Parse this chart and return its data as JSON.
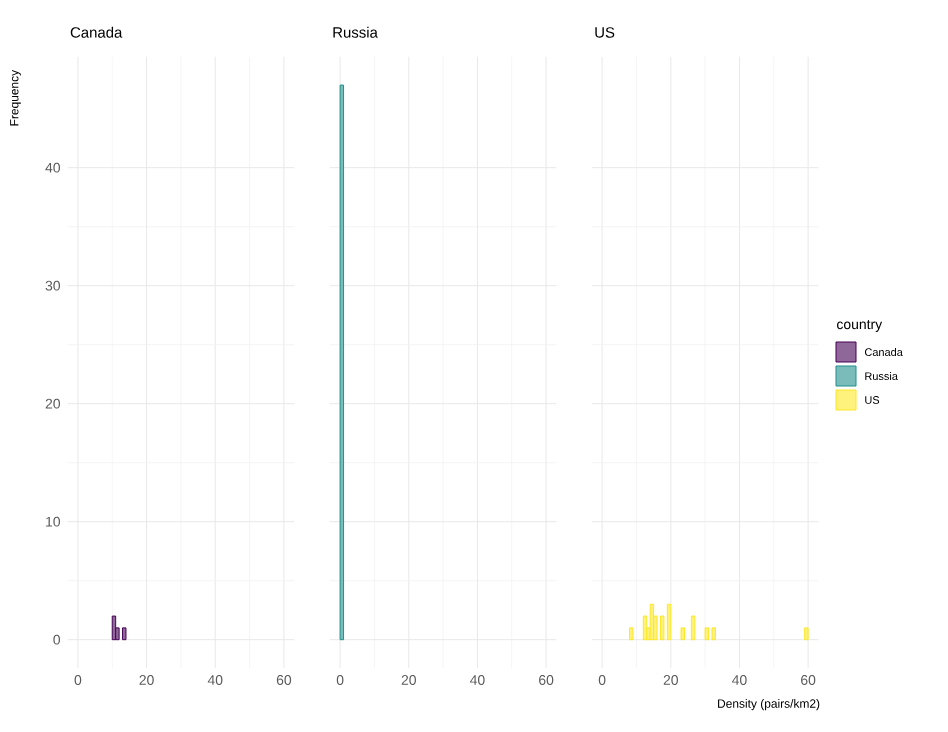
{
  "chart_data": [
    {
      "type": "histogram",
      "title": "Canada",
      "ylabel": "Frequency",
      "bins": [
        0,
        1,
        2,
        3,
        4,
        5,
        6,
        7,
        8,
        9,
        10,
        11,
        12,
        13,
        14,
        15,
        16,
        17,
        18,
        19,
        20,
        21,
        22,
        23,
        24,
        25,
        26,
        27,
        28,
        29,
        30,
        31,
        32,
        33,
        34,
        35,
        36,
        37,
        38,
        39,
        40,
        41,
        42,
        43,
        44,
        45,
        46,
        47,
        48,
        49,
        50,
        51,
        52,
        53,
        54,
        55,
        56,
        57,
        58,
        59,
        60
      ],
      "series": [
        {
          "name": "Canada",
          "color": "#440154",
          "values": [
            0,
            0,
            0,
            0,
            0,
            0,
            0,
            0,
            0,
            0,
            2,
            1,
            0,
            1,
            0,
            0,
            0,
            0,
            0,
            0,
            0,
            0,
            0,
            0,
            0,
            0,
            0,
            0,
            0,
            0,
            0,
            0,
            0,
            0,
            0,
            0,
            0,
            0,
            0,
            0,
            0,
            0,
            0,
            0,
            0,
            0,
            0,
            0,
            0,
            0,
            0,
            0,
            0,
            0,
            0,
            0,
            0,
            0,
            0,
            0
          ]
        }
      ],
      "xlim": [
        -3,
        63
      ],
      "ylim": [
        -2.4,
        49.4
      ],
      "xticks": [
        0,
        20,
        40,
        60
      ],
      "yticks": [
        0,
        10,
        20,
        30,
        40
      ],
      "grid": true
    },
    {
      "type": "histogram",
      "title": "Russia",
      "bins": [
        0,
        1,
        2,
        3,
        4,
        5,
        6,
        7,
        8,
        9,
        10,
        11,
        12,
        13,
        14,
        15,
        16,
        17,
        18,
        19,
        20,
        21,
        22,
        23,
        24,
        25,
        26,
        27,
        28,
        29,
        30,
        31,
        32,
        33,
        34,
        35,
        36,
        37,
        38,
        39,
        40,
        41,
        42,
        43,
        44,
        45,
        46,
        47,
        48,
        49,
        50,
        51,
        52,
        53,
        54,
        55,
        56,
        57,
        58,
        59,
        60
      ],
      "series": [
        {
          "name": "Russia",
          "color": "#21908c",
          "values": [
            47,
            0,
            0,
            0,
            0,
            0,
            0,
            0,
            0,
            0,
            0,
            0,
            0,
            0,
            0,
            0,
            0,
            0,
            0,
            0,
            0,
            0,
            0,
            0,
            0,
            0,
            0,
            0,
            0,
            0,
            0,
            0,
            0,
            0,
            0,
            0,
            0,
            0,
            0,
            0,
            0,
            0,
            0,
            0,
            0,
            0,
            0,
            0,
            0,
            0,
            0,
            0,
            0,
            0,
            0,
            0,
            0,
            0,
            0,
            0
          ]
        }
      ],
      "xlim": [
        -3,
        63
      ],
      "ylim": [
        -2.4,
        49.4
      ],
      "xticks": [
        0,
        20,
        40,
        60
      ],
      "yticks": [
        0,
        10,
        20,
        30,
        40
      ],
      "grid": true,
      "tick_labels": "x"
    },
    {
      "type": "histogram",
      "title": "US",
      "xlabel": "Density (pairs/km2)",
      "legend_title": "country",
      "legend": "right",
      "bins": [
        0,
        1,
        2,
        3,
        4,
        5,
        6,
        7,
        8,
        9,
        10,
        11,
        12,
        13,
        14,
        15,
        16,
        17,
        18,
        19,
        20,
        21,
        22,
        23,
        24,
        25,
        26,
        27,
        28,
        29,
        30,
        31,
        32,
        33,
        34,
        35,
        36,
        37,
        38,
        39,
        40,
        41,
        42,
        43,
        44,
        45,
        46,
        47,
        48,
        49,
        50,
        51,
        52,
        53,
        54,
        55,
        56,
        57,
        58,
        59,
        60
      ],
      "series": [
        {
          "name": "US",
          "color": "#fde725",
          "values": [
            0,
            0,
            0,
            0,
            0,
            0,
            0,
            0,
            1,
            0,
            0,
            0,
            2,
            1,
            3,
            2,
            0,
            2,
            0,
            3,
            0,
            0,
            0,
            1,
            0,
            0,
            2,
            0,
            0,
            0,
            1,
            0,
            1,
            0,
            0,
            0,
            0,
            0,
            0,
            0,
            0,
            0,
            0,
            0,
            0,
            0,
            0,
            0,
            0,
            0,
            0,
            0,
            0,
            0,
            0,
            0,
            0,
            0,
            0,
            1
          ]
        }
      ],
      "xlim": [
        -3,
        63
      ],
      "ylim": [
        -2.4,
        49.4
      ],
      "xticks": [
        0,
        20,
        40,
        60
      ],
      "yticks": [
        0,
        10,
        20,
        30,
        40
      ],
      "grid": true,
      "tick_labels": "x"
    }
  ]
}
